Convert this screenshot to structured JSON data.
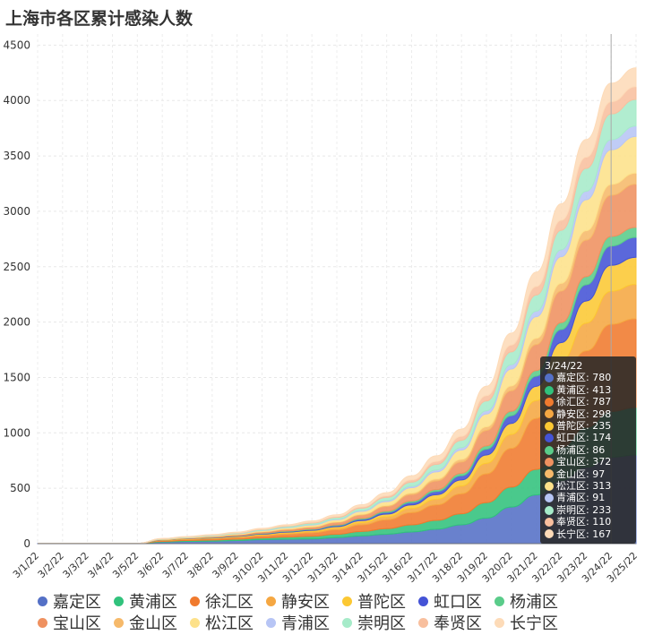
{
  "title": "上海市各区累计感染人数",
  "chart_data": {
    "type": "area",
    "stacked": true,
    "ylim": [
      0,
      4600
    ],
    "yticks": [
      0,
      500,
      1000,
      1500,
      2000,
      2500,
      3000,
      3500,
      4000,
      4500
    ],
    "x": [
      "3/1/22",
      "3/2/22",
      "3/3/22",
      "3/4/22",
      "3/5/22",
      "3/6/22",
      "3/7/22",
      "3/8/22",
      "3/9/22",
      "3/10/22",
      "3/11/22",
      "3/12/22",
      "3/13/22",
      "3/14/22",
      "3/15/22",
      "3/16/22",
      "3/17/22",
      "3/18/22",
      "3/19/22",
      "3/20/22",
      "3/21/22",
      "3/22/22",
      "3/23/22",
      "3/24/22",
      "3/25/22"
    ],
    "series": [
      {
        "name": "嘉定区",
        "color": "#5470c6",
        "values": [
          2,
          2,
          2,
          2,
          2,
          15,
          20,
          22,
          28,
          36,
          40,
          42,
          55,
          70,
          85,
          105,
          130,
          170,
          230,
          330,
          440,
          570,
          690,
          780,
          800
        ]
      },
      {
        "name": "黄浦区",
        "color": "#31c27c",
        "values": [
          0,
          0,
          0,
          0,
          0,
          5,
          8,
          10,
          12,
          15,
          20,
          25,
          30,
          40,
          50,
          65,
          80,
          100,
          140,
          180,
          230,
          300,
          360,
          413,
          430
        ]
      },
      {
        "name": "徐汇区",
        "color": "#f07a2e",
        "values": [
          0,
          0,
          0,
          0,
          0,
          8,
          10,
          12,
          15,
          20,
          25,
          30,
          40,
          60,
          80,
          110,
          140,
          180,
          260,
          350,
          460,
          580,
          690,
          787,
          800
        ]
      },
      {
        "name": "静安区",
        "color": "#f5a742",
        "values": [
          0,
          0,
          0,
          0,
          0,
          2,
          3,
          4,
          6,
          8,
          10,
          12,
          15,
          20,
          28,
          38,
          50,
          70,
          95,
          125,
          160,
          200,
          250,
          298,
          310
        ]
      },
      {
        "name": "普陀区",
        "color": "#fcc833",
        "values": [
          0,
          0,
          0,
          0,
          0,
          2,
          3,
          4,
          5,
          7,
          9,
          11,
          14,
          18,
          24,
          32,
          42,
          55,
          75,
          100,
          130,
          165,
          200,
          235,
          245
        ]
      },
      {
        "name": "虹口区",
        "color": "#4453d6",
        "values": [
          0,
          0,
          0,
          0,
          0,
          1,
          2,
          3,
          4,
          5,
          6,
          7,
          9,
          12,
          16,
          22,
          29,
          38,
          52,
          70,
          92,
          118,
          146,
          174,
          180
        ]
      },
      {
        "name": "杨浦区",
        "color": "#5acc8a",
        "values": [
          0,
          0,
          0,
          0,
          0,
          1,
          1,
          2,
          2,
          3,
          4,
          5,
          6,
          8,
          10,
          13,
          17,
          22,
          30,
          40,
          50,
          62,
          74,
          86,
          90
        ]
      },
      {
        "name": "宝山区",
        "color": "#ef9160",
        "values": [
          0,
          0,
          0,
          0,
          0,
          3,
          5,
          6,
          8,
          11,
          14,
          17,
          22,
          30,
          42,
          58,
          78,
          102,
          140,
          185,
          235,
          285,
          330,
          372,
          390
        ]
      },
      {
        "name": "金山区",
        "color": "#f6b96a",
        "values": [
          0,
          0,
          0,
          0,
          0,
          1,
          1,
          2,
          2,
          3,
          4,
          5,
          6,
          8,
          10,
          14,
          18,
          24,
          33,
          44,
          56,
          70,
          84,
          97,
          100
        ]
      },
      {
        "name": "松江区",
        "color": "#fde18a",
        "values": [
          0,
          0,
          0,
          0,
          0,
          3,
          4,
          5,
          7,
          9,
          12,
          15,
          19,
          26,
          35,
          48,
          64,
          84,
          115,
          152,
          195,
          240,
          280,
          313,
          330
        ]
      },
      {
        "name": "青浦区",
        "color": "#b7c5f5",
        "values": [
          0,
          0,
          0,
          0,
          0,
          1,
          1,
          2,
          2,
          3,
          4,
          5,
          6,
          8,
          10,
          13,
          17,
          22,
          30,
          40,
          51,
          63,
          77,
          91,
          95
        ]
      },
      {
        "name": "崇明区",
        "color": "#a6ebc9",
        "values": [
          0,
          0,
          0,
          0,
          0,
          2,
          3,
          4,
          5,
          7,
          9,
          12,
          15,
          20,
          27,
          37,
          50,
          66,
          88,
          115,
          145,
          176,
          206,
          233,
          240
        ]
      },
      {
        "name": "奉贤区",
        "color": "#f8bf9e",
        "values": [
          0,
          0,
          0,
          0,
          0,
          1,
          1,
          2,
          3,
          4,
          5,
          7,
          9,
          12,
          16,
          21,
          28,
          36,
          48,
          62,
          77,
          90,
          101,
          110,
          115
        ]
      },
      {
        "name": "长宁区",
        "color": "#fddbb8",
        "values": [
          0,
          0,
          0,
          0,
          0,
          2,
          3,
          4,
          5,
          7,
          9,
          12,
          15,
          20,
          27,
          37,
          50,
          65,
          85,
          108,
          130,
          149,
          160,
          167,
          170
        ]
      }
    ],
    "tooltip": {
      "date": "3/24/22",
      "index": 23
    }
  }
}
